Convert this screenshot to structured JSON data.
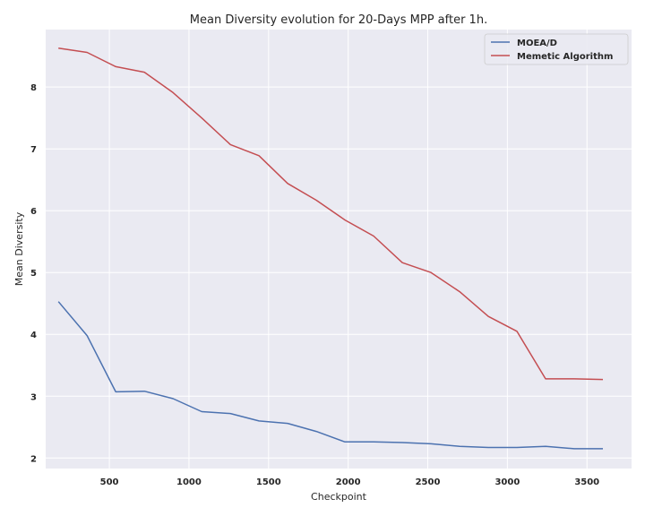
{
  "chart_data": {
    "type": "line",
    "title": "Mean Diversity evolution for 20-Days MPP after 1h.",
    "xlabel": "Checkpoint",
    "ylabel": "Mean Diversity",
    "xlim": [
      100,
      3780
    ],
    "ylim": [
      1.83,
      8.93
    ],
    "xticks": [
      500,
      1000,
      1500,
      2000,
      2500,
      3000,
      3500
    ],
    "yticks": [
      2,
      3,
      4,
      5,
      6,
      7,
      8
    ],
    "grid": true,
    "legend": "top-right",
    "x": [
      180,
      360,
      540,
      720,
      900,
      1080,
      1260,
      1440,
      1620,
      1800,
      1980,
      2160,
      2340,
      2520,
      2700,
      2880,
      3060,
      3240,
      3420,
      3600
    ],
    "series": [
      {
        "name": "MOEA/D",
        "color": "#4c72b0",
        "values": [
          4.53,
          3.98,
          3.07,
          3.08,
          2.96,
          2.75,
          2.72,
          2.6,
          2.56,
          2.43,
          2.26,
          2.26,
          2.25,
          2.23,
          2.19,
          2.17,
          2.17,
          2.19,
          2.15,
          2.15
        ]
      },
      {
        "name": "Memetic Algorithm",
        "color": "#c44e52",
        "values": [
          8.63,
          8.56,
          8.33,
          8.24,
          7.91,
          7.5,
          7.07,
          6.89,
          6.44,
          6.17,
          5.85,
          5.59,
          5.16,
          5.0,
          4.69,
          4.29,
          4.05,
          3.28,
          3.28,
          3.27
        ]
      }
    ]
  }
}
